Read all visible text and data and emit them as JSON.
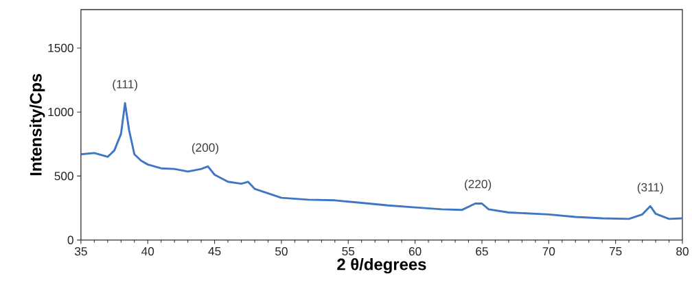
{
  "chart_data": {
    "type": "line",
    "xlabel": "2 θ/degrees",
    "ylabel": "Intensity/Cps",
    "xlim": [
      35,
      80
    ],
    "ylim": [
      0,
      1800
    ],
    "xticks": [
      35,
      40,
      45,
      50,
      55,
      60,
      65,
      70,
      75,
      80
    ],
    "yticks": [
      0,
      500,
      1000,
      1500
    ],
    "grid": false,
    "marker": "none",
    "line_style": "solid",
    "series": [
      {
        "color": "#3f76c4",
        "x": [
          35,
          36,
          37,
          37.5,
          38,
          38.3,
          38.6,
          39,
          39.5,
          40,
          41,
          42,
          43,
          44,
          44.5,
          45,
          46,
          47,
          47.5,
          48,
          49,
          50,
          52,
          54,
          56,
          58,
          60,
          62,
          63.5,
          64.5,
          65,
          65.5,
          67,
          70,
          72,
          74,
          76,
          77,
          77.6,
          78,
          79,
          80
        ],
        "values": [
          670,
          680,
          650,
          700,
          830,
          1070,
          860,
          670,
          620,
          590,
          560,
          555,
          535,
          555,
          575,
          510,
          455,
          440,
          455,
          400,
          365,
          330,
          315,
          310,
          290,
          270,
          255,
          240,
          235,
          285,
          285,
          240,
          215,
          200,
          180,
          170,
          165,
          200,
          265,
          205,
          165,
          170
        ]
      }
    ],
    "annotations": [
      {
        "text": "(111)",
        "x": 38.3,
        "y": 1070
      },
      {
        "text": "(200)",
        "x": 44.3,
        "y": 575
      },
      {
        "text": "(220)",
        "x": 64.7,
        "y": 290
      },
      {
        "text": "(311)",
        "x": 77.6,
        "y": 265
      }
    ]
  }
}
